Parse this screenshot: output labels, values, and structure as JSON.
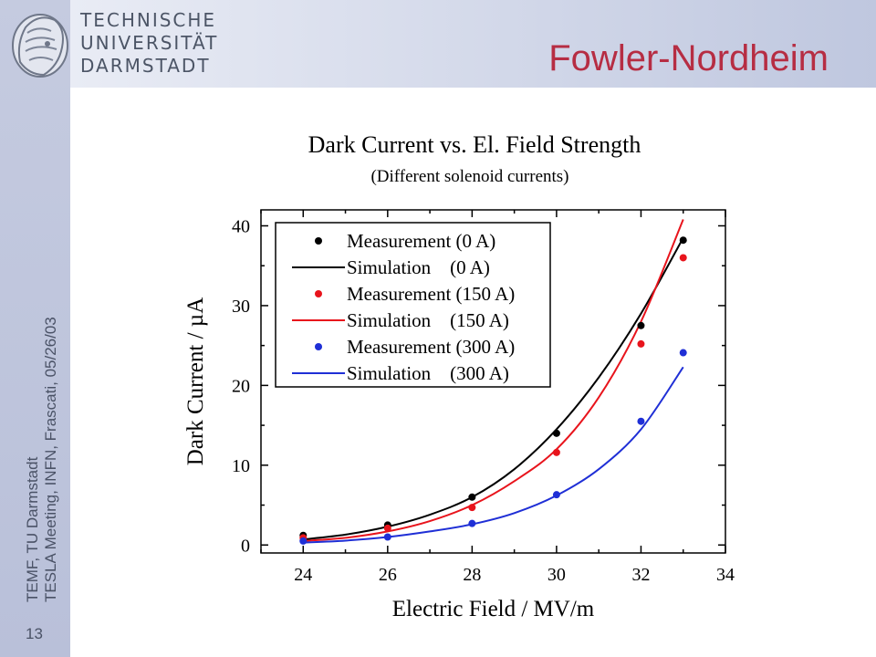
{
  "header": {
    "university_lines": [
      "TECHNISCHE",
      "UNIVERSITÄT",
      "DARMSTADT"
    ],
    "slide_title": "Fowler-Nordheim"
  },
  "sidebar": {
    "lines": [
      "TEMF, TU Darmstadt",
      "TESLA Meeting, INFN, Frascati, 05/26/03"
    ],
    "slide_number": "13"
  },
  "chart_data": {
    "type": "scatter",
    "title": "Dark Current vs. El. Field Strength",
    "subtitle": "(Different solenoid currents)",
    "xlabel": "Electric Field / MV/m",
    "ylabel": "Dark Current / µA",
    "xlim": [
      23,
      34
    ],
    "ylim": [
      -1,
      42
    ],
    "x_ticks": [
      24,
      26,
      28,
      30,
      32,
      34
    ],
    "y_ticks": [
      0,
      10,
      20,
      30,
      40
    ],
    "grid": false,
    "legend_position": "top-left",
    "colors": {
      "0A": "#000000",
      "150A": "#e8141c",
      "300A": "#1f2fd6"
    },
    "measurements": [
      {
        "name": "Measurement (0 A)",
        "color": "#000000",
        "x": [
          24,
          26,
          28,
          30,
          32,
          33
        ],
        "y": [
          1.2,
          2.5,
          6.0,
          14.0,
          27.5,
          38.2
        ]
      },
      {
        "name": "Measurement (150 A)",
        "color": "#e8141c",
        "x": [
          24,
          26,
          28,
          30,
          32,
          33
        ],
        "y": [
          0.9,
          2.1,
          4.7,
          11.6,
          25.2,
          36.0
        ]
      },
      {
        "name": "Measurement (300 A)",
        "color": "#1f2fd6",
        "x": [
          24,
          26,
          28,
          30,
          32,
          33
        ],
        "y": [
          0.5,
          1.0,
          2.7,
          6.3,
          15.5,
          24.1
        ]
      }
    ],
    "simulations": [
      {
        "name": "Simulation    (0 A)",
        "color": "#000000",
        "x": [
          24,
          25,
          26,
          27,
          28,
          29,
          30,
          31,
          32,
          33
        ],
        "y": [
          0.7,
          1.3,
          2.3,
          3.8,
          6.0,
          9.5,
          14.5,
          21.0,
          29.0,
          38.5
        ]
      },
      {
        "name": "Simulation    (150 A)",
        "color": "#e8141c",
        "x": [
          24,
          25,
          26,
          27,
          28,
          29,
          30,
          31,
          32,
          33
        ],
        "y": [
          0.5,
          0.9,
          1.7,
          3.0,
          5.0,
          8.0,
          12.0,
          18.5,
          28.0,
          40.8
        ]
      },
      {
        "name": "Simulation    (300 A)",
        "color": "#1f2fd6",
        "x": [
          24,
          25,
          26,
          27,
          28,
          29,
          30,
          31,
          32,
          33
        ],
        "y": [
          0.3,
          0.55,
          1.0,
          1.7,
          2.6,
          4.0,
          6.2,
          9.5,
          14.5,
          22.3
        ]
      }
    ],
    "legend": [
      {
        "label": "Measurement (0 A)",
        "kind": "marker",
        "color": "#000000"
      },
      {
        "label": "Simulation    (0 A)",
        "kind": "line",
        "color": "#000000"
      },
      {
        "label": "Measurement (150 A)",
        "kind": "marker",
        "color": "#e8141c"
      },
      {
        "label": "Simulation    (150 A)",
        "kind": "line",
        "color": "#e8141c"
      },
      {
        "label": "Measurement (300 A)",
        "kind": "marker",
        "color": "#1f2fd6"
      },
      {
        "label": "Simulation    (300 A)",
        "kind": "line",
        "color": "#1f2fd6"
      }
    ]
  }
}
